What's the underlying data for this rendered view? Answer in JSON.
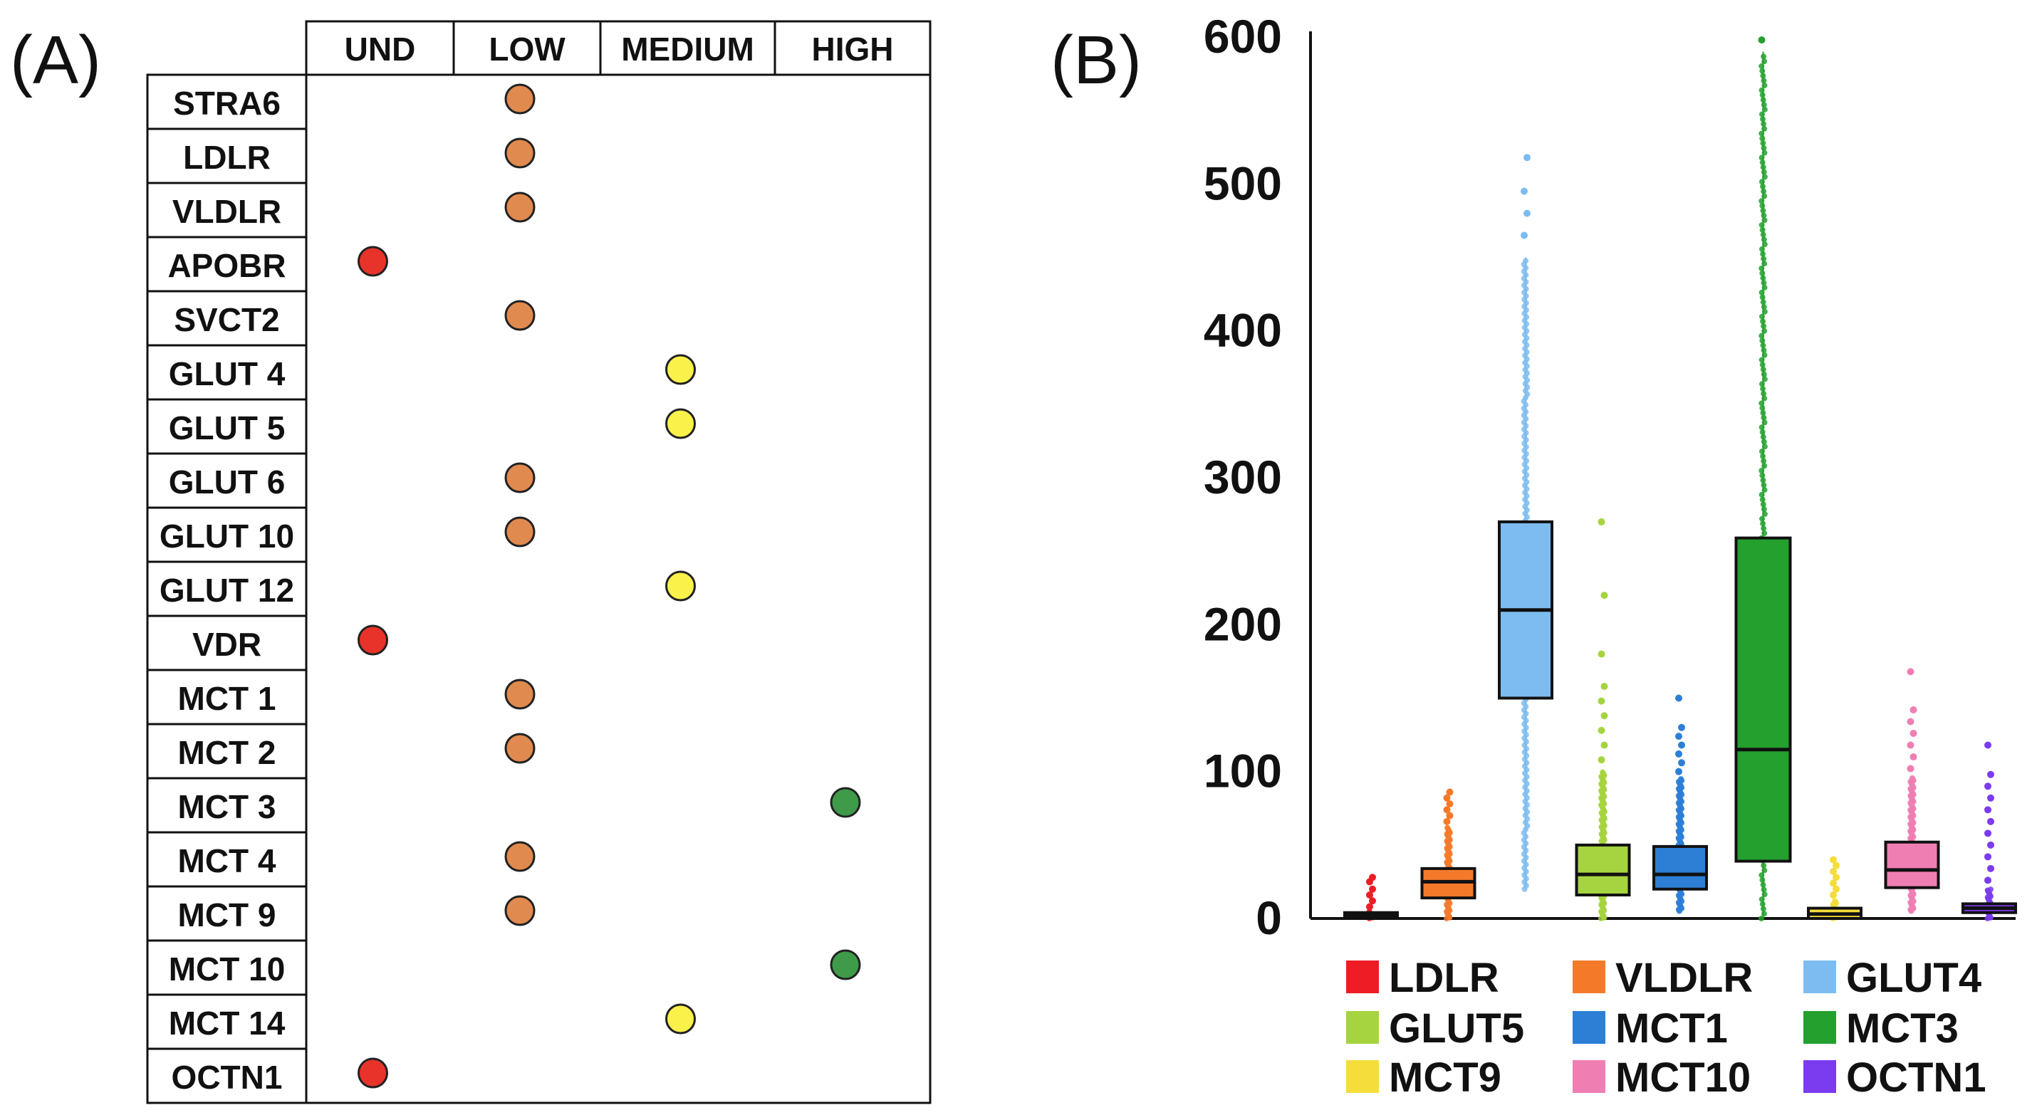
{
  "panel_a_label": "(A)",
  "panel_b_label": "(B)",
  "chart_data": [
    {
      "type": "table",
      "panel": "(A)",
      "columns": [
        "UND",
        "LOW",
        "MEDIUM",
        "HIGH"
      ],
      "rows": [
        {
          "gene": "STRA6",
          "level": "LOW"
        },
        {
          "gene": "LDLR",
          "level": "LOW"
        },
        {
          "gene": "VLDLR",
          "level": "LOW"
        },
        {
          "gene": "APOBR",
          "level": "UND"
        },
        {
          "gene": "SVCT2",
          "level": "LOW"
        },
        {
          "gene": "GLUT 4",
          "level": "MEDIUM"
        },
        {
          "gene": "GLUT 5",
          "level": "MEDIUM"
        },
        {
          "gene": "GLUT 6",
          "level": "LOW"
        },
        {
          "gene": "GLUT 10",
          "level": "LOW"
        },
        {
          "gene": "GLUT 12",
          "level": "MEDIUM"
        },
        {
          "gene": "VDR",
          "level": "UND"
        },
        {
          "gene": "MCT 1",
          "level": "LOW"
        },
        {
          "gene": "MCT 2",
          "level": "LOW"
        },
        {
          "gene": "MCT 3",
          "level": "HIGH"
        },
        {
          "gene": "MCT 4",
          "level": "LOW"
        },
        {
          "gene": "MCT 9",
          "level": "LOW"
        },
        {
          "gene": "MCT 10",
          "level": "HIGH"
        },
        {
          "gene": "MCT 14",
          "level": "MEDIUM"
        },
        {
          "gene": "OCTN1",
          "level": "UND"
        }
      ],
      "level_colors": {
        "UND": "#e8332a",
        "LOW": "#e08a4f",
        "MEDIUM": "#faf14a",
        "HIGH": "#3f9b4a"
      }
    },
    {
      "type": "box",
      "panel": "(B)",
      "ylim": [
        0,
        600
      ],
      "yticks": [
        0,
        100,
        200,
        300,
        400,
        500,
        600
      ],
      "series": [
        {
          "name": "LDLR",
          "color": "#ee1c25",
          "min": 0,
          "q1": 0,
          "median": 2,
          "q3": 4,
          "max": 5,
          "outliers": [
            8,
            12,
            16,
            20,
            25,
            28
          ]
        },
        {
          "name": "VLDLR",
          "color": "#f47a2a",
          "min": 0,
          "q1": 14,
          "median": 25,
          "q3": 34,
          "max": 62,
          "outliers": [
            66,
            70,
            74,
            78,
            82,
            86
          ]
        },
        {
          "name": "GLUT4",
          "color": "#7cbcf1",
          "min": 20,
          "q1": 150,
          "median": 210,
          "q3": 270,
          "max": 450,
          "outliers": [
            465,
            480,
            495,
            518
          ]
        },
        {
          "name": "GLUT5",
          "color": "#a6d440",
          "min": 0,
          "q1": 16,
          "median": 30,
          "q3": 50,
          "max": 100,
          "outliers": [
            108,
            118,
            128,
            138,
            148,
            158,
            180,
            220,
            270
          ]
        },
        {
          "name": "MCT1",
          "color": "#2d7fd6",
          "min": 5,
          "q1": 20,
          "median": 30,
          "q3": 49,
          "max": 95,
          "outliers": [
            100,
            106,
            112,
            118,
            124,
            130,
            150
          ]
        },
        {
          "name": "MCT3",
          "color": "#23a02e",
          "min": 0,
          "q1": 39,
          "median": 115,
          "q3": 259,
          "max": 590,
          "outliers": [
            598
          ]
        },
        {
          "name": "MCT9",
          "color": "#f5dd3a",
          "min": 0,
          "q1": 0,
          "median": 3,
          "q3": 7,
          "max": 12,
          "outliers": [
            16,
            20,
            24,
            28,
            32,
            36,
            40
          ]
        },
        {
          "name": "MCT10",
          "color": "#ef7eb3",
          "min": 5,
          "q1": 21,
          "median": 33,
          "q3": 52,
          "max": 96,
          "outliers": [
            102,
            110,
            118,
            126,
            134,
            142,
            168
          ]
        },
        {
          "name": "OCTN1",
          "color": "#7b3bef",
          "min": 0,
          "q1": 4,
          "median": 7,
          "q3": 10,
          "max": 20,
          "outliers": [
            26,
            34,
            42,
            50,
            58,
            66,
            74,
            82,
            90,
            98,
            118
          ]
        }
      ],
      "legend": [
        "LDLR",
        "VLDLR",
        "GLUT4",
        "GLUT5",
        "MCT1",
        "MCT3",
        "MCT9",
        "MCT10",
        "OCTN1"
      ],
      "legend_position": "bottom"
    }
  ]
}
